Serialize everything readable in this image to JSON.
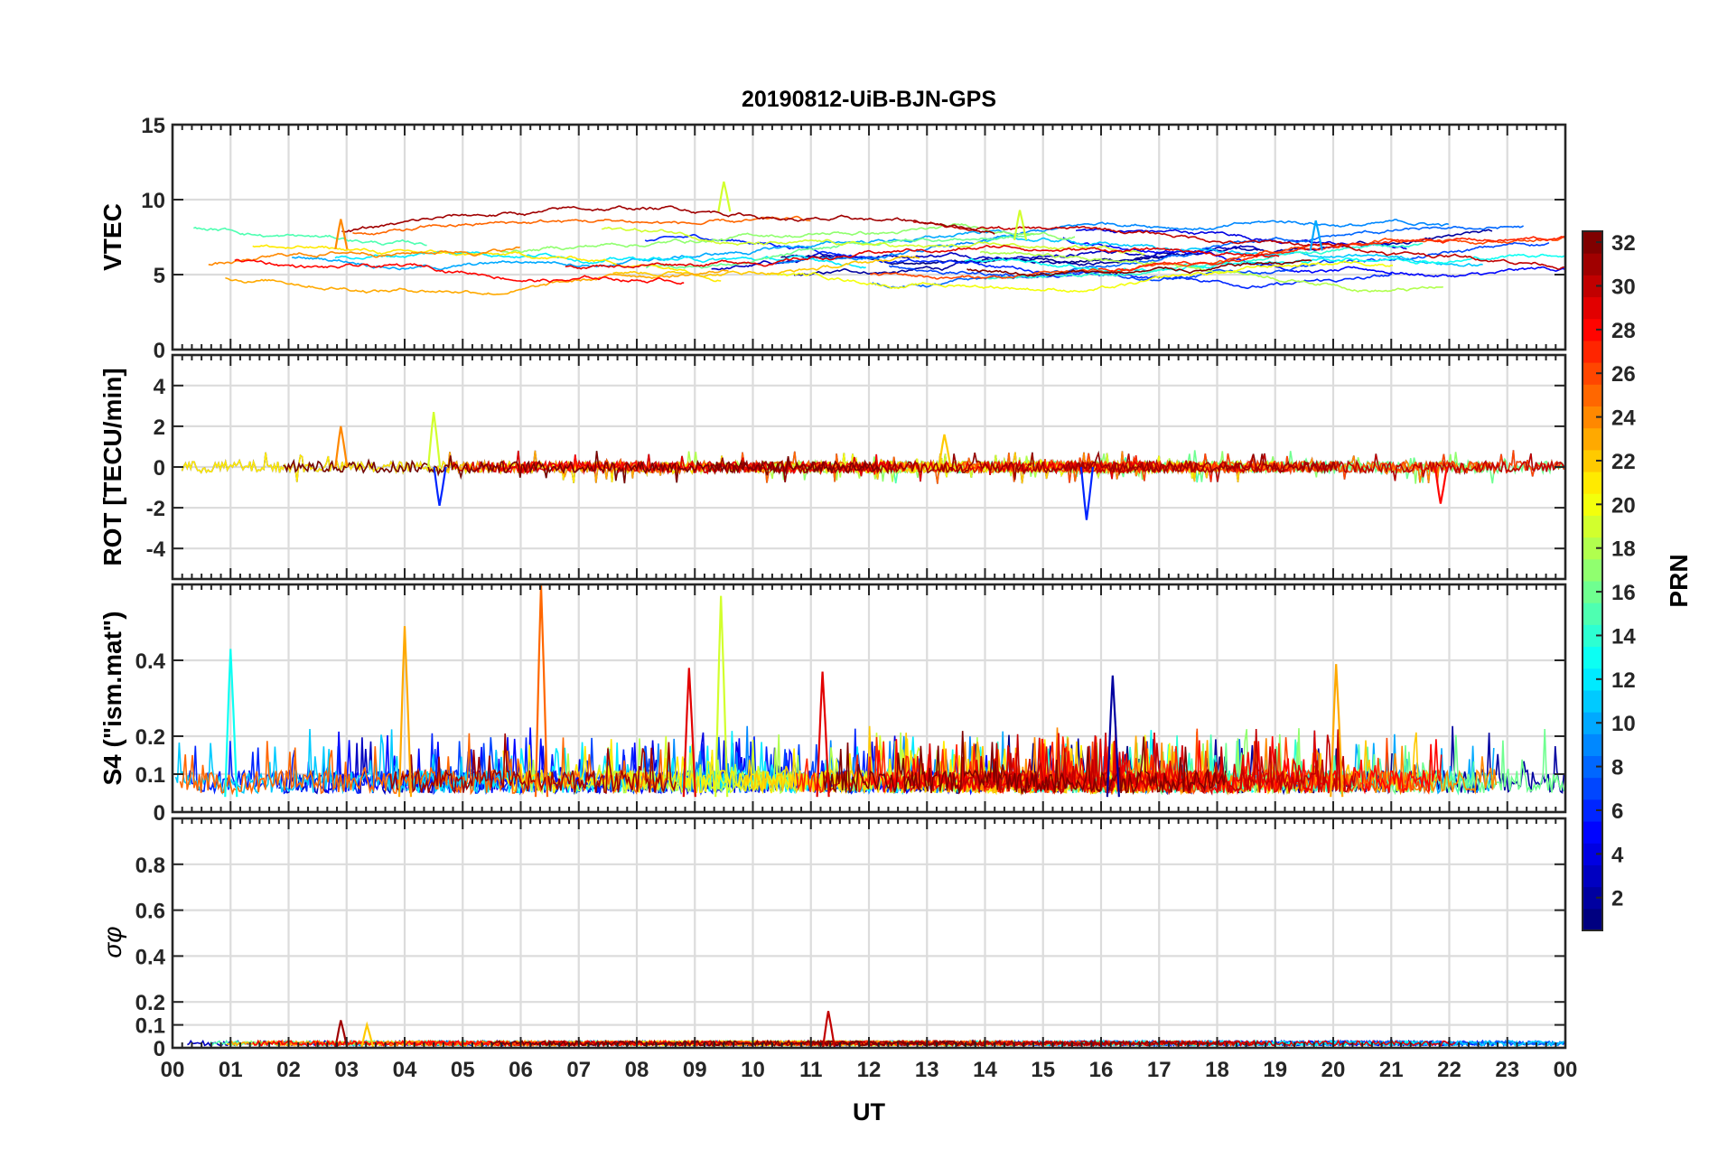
{
  "figure": {
    "title": "20190812-UiB-BJN-GPS",
    "xlabel": "UT",
    "colorbar_label": "PRN"
  },
  "chart_data": [
    {
      "type": "line",
      "panel": "vtec",
      "title": "20190812-UiB-BJN-GPS",
      "ylabel": "VTEC",
      "xlabel": "",
      "ylim": [
        0,
        15
      ],
      "yticks": [
        "0",
        "5",
        "10",
        "15"
      ],
      "xlim": [
        0,
        24
      ],
      "xticks": [
        "00",
        "01",
        "02",
        "03",
        "04",
        "05",
        "06",
        "07",
        "08",
        "09",
        "10",
        "11",
        "12",
        "13",
        "14",
        "15",
        "16",
        "17",
        "18",
        "19",
        "20",
        "21",
        "22",
        "23",
        "00"
      ],
      "grid": true,
      "series_note": "one trace per GPS satellite, colored by PRN",
      "typical_range": [
        4,
        9
      ],
      "peak_values": [
        {
          "x": 9.5,
          "y": 11.2,
          "prn": 19
        },
        {
          "x": 14.6,
          "y": 9.3,
          "prn": 19
        },
        {
          "x": 19.7,
          "y": 8.6,
          "prn": 10
        },
        {
          "x": 2.9,
          "y": 8.7,
          "prn": 24
        }
      ]
    },
    {
      "type": "line",
      "panel": "rot",
      "ylabel": "ROT [TECU/min]",
      "ylim": [
        -5.5,
        5.5
      ],
      "yticks": [
        "-4",
        "-2",
        "0",
        "2",
        "4"
      ],
      "xlim": [
        0,
        24
      ],
      "grid": true,
      "typical_range": [
        -0.5,
        0.5
      ],
      "peak_values": [
        {
          "x": 4.5,
          "y": 2.7,
          "prn": 19
        },
        {
          "x": 2.9,
          "y": 2.0,
          "prn": 24
        },
        {
          "x": 15.75,
          "y": -2.6,
          "prn": 6
        },
        {
          "x": 4.6,
          "y": -1.9,
          "prn": 6
        },
        {
          "x": 13.3,
          "y": 1.6,
          "prn": 22
        },
        {
          "x": 21.85,
          "y": -1.8,
          "prn": 28
        }
      ]
    },
    {
      "type": "line",
      "panel": "s4",
      "ylabel": "S4 (\"ism.mat\")",
      "ylim": [
        0,
        0.6
      ],
      "yticks": [
        "0",
        "0.1",
        "0.2",
        "0.4"
      ],
      "xlim": [
        0,
        24
      ],
      "grid": true,
      "typical_range": [
        0.04,
        0.15
      ],
      "peak_values": [
        {
          "x": 6.35,
          "y": 0.6,
          "prn": 25
        },
        {
          "x": 9.45,
          "y": 0.57,
          "prn": 19
        },
        {
          "x": 4.0,
          "y": 0.49,
          "prn": 23
        },
        {
          "x": 1.0,
          "y": 0.43,
          "prn": 13
        },
        {
          "x": 8.9,
          "y": 0.38,
          "prn": 29
        },
        {
          "x": 20.05,
          "y": 0.39,
          "prn": 23
        },
        {
          "x": 11.2,
          "y": 0.37,
          "prn": 29
        },
        {
          "x": 16.2,
          "y": 0.36,
          "prn": 2
        }
      ]
    },
    {
      "type": "line",
      "panel": "sigma_phi",
      "ylabel": "σφ",
      "ylim": [
        0,
        1.0
      ],
      "yticks": [
        "0",
        "0.1",
        "0.2",
        "0.4",
        "0.6",
        "0.8"
      ],
      "xlim": [
        0,
        24
      ],
      "grid": true,
      "typical_range": [
        0.0,
        0.04
      ],
      "peak_values": [
        {
          "x": 11.3,
          "y": 0.16,
          "prn": 30
        },
        {
          "x": 2.9,
          "y": 0.12,
          "prn": 31
        },
        {
          "x": 3.35,
          "y": 0.1,
          "prn": 22
        }
      ]
    }
  ],
  "colorbar": {
    "label": "PRN",
    "range": [
      1,
      32
    ],
    "ticks": [
      "2",
      "4",
      "6",
      "8",
      "10",
      "12",
      "14",
      "16",
      "18",
      "20",
      "22",
      "24",
      "26",
      "28",
      "30",
      "32"
    ],
    "colormap": "jet"
  },
  "colors": {
    "axis": "#262626",
    "grid": "#dcdcdc",
    "background": "#ffffff"
  }
}
